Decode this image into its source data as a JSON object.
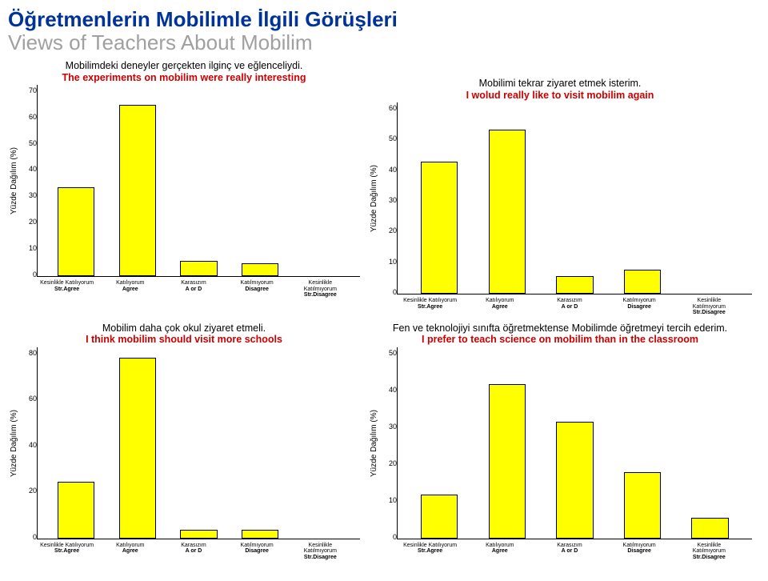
{
  "page_title_tr": "Öğretmenlerin Mobilimle İlgili Görüşleri",
  "page_title_en": "Views of Teachers About Mobilim",
  "y_axis_label": "Yüzde Dağılım   (%)",
  "categories_tr": [
    "Kesinlikle Katılıyorum",
    "Katılıyorum",
    "Karasızım",
    "Katılmıyorum",
    "Kesinlikle Katılmıyorum"
  ],
  "categories_en": [
    "Str.Agree",
    "Agree",
    "A or D",
    "Disagree",
    "Str.Disagree"
  ],
  "bar_style": {
    "fill": "#ffff00",
    "stroke": "#000000",
    "stroke_width": 1,
    "bar_width_ratio": 0.74
  },
  "charts": [
    {
      "id": "chart1",
      "title_tr": "Mobilimdeki deneyler gerçekten ilginç ve eğlenceliydi.",
      "title_en": "The experiments on mobilim were really interesting",
      "ymax": 70,
      "ytick_step": 10,
      "values": [
        32,
        62,
        5,
        4,
        0
      ]
    },
    {
      "id": "chart2",
      "title_tr": "Mobilimi tekrar ziyaret etmek isterim.",
      "title_en": "I wolud really like to visit mobilim again",
      "ymax": 60,
      "ytick_step": 10,
      "values": [
        41,
        51,
        5,
        7,
        0
      ]
    },
    {
      "id": "chart3",
      "title_tr": "Mobilim daha çok okul ziyaret etmeli.",
      "title_en": "I think mobilim should visit more schools",
      "ymax": 80,
      "ytick_step": 20,
      "values": [
        23,
        75,
        3,
        3,
        0
      ]
    },
    {
      "id": "chart4",
      "title_tr": "Fen ve teknolojiyi sınıfta öğretmektense Mobilimde öğretmeyi tercih ederim.",
      "title_en": "I prefer to teach science on mobilim than in the classroom",
      "ymax": 50,
      "ytick_step": 10,
      "values": [
        11,
        40,
        30,
        17,
        5
      ]
    }
  ]
}
